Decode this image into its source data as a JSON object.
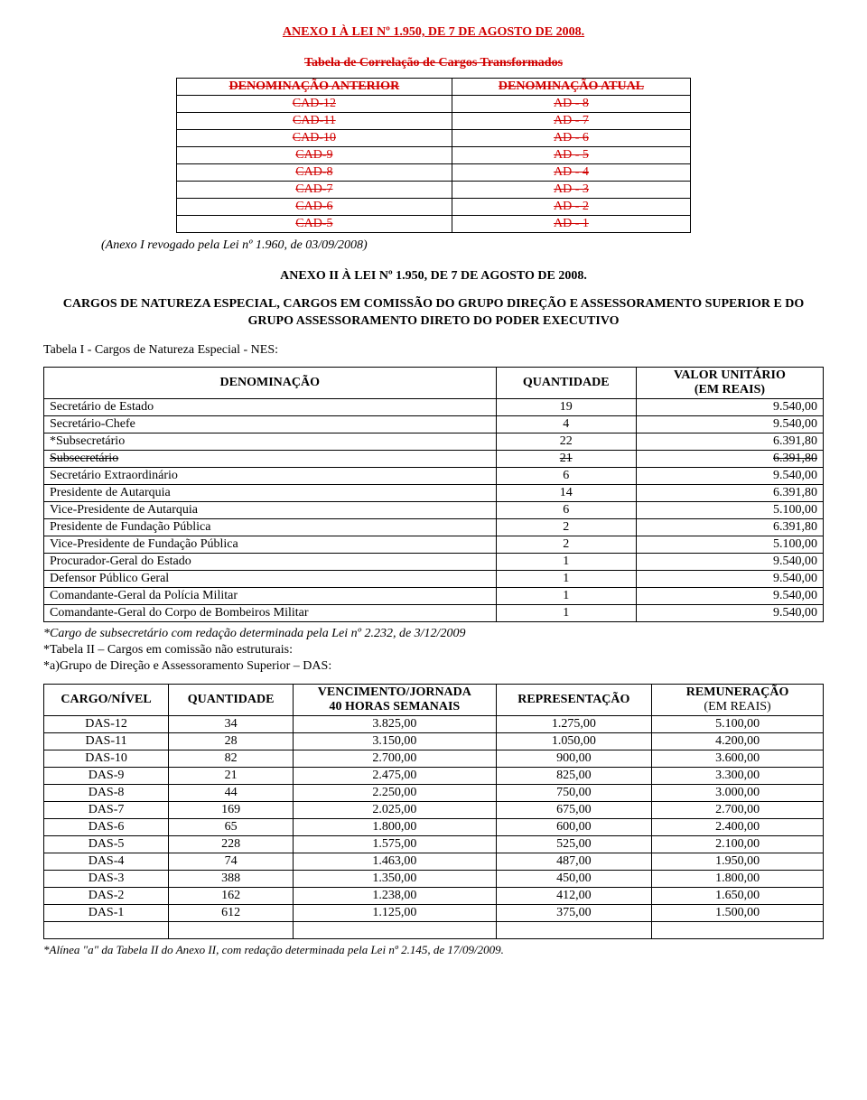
{
  "title1": "ANEXO I À LEI Nº 1.950, DE 7 DE AGOSTO DE 2008.",
  "title2": "Tabela de Correlação de Cargos Transformados",
  "table1": {
    "head1": "DENOMINAÇÃO ANTERIOR",
    "head2": "DENOMINAÇÃO ATUAL",
    "rows": [
      {
        "a": "CAD-12",
        "b": "AD - 8"
      },
      {
        "a": "CAD-11",
        "b": "AD - 7"
      },
      {
        "a": "CAD-10",
        "b": "AD - 6"
      },
      {
        "a": "CAD-9",
        "b": "AD - 5"
      },
      {
        "a": "CAD-8",
        "b": "AD - 4"
      },
      {
        "a": "CAD-7",
        "b": "AD - 3"
      },
      {
        "a": "CAD-6",
        "b": "AD - 2"
      },
      {
        "a": "CAD-5",
        "b": "AD - 1"
      }
    ]
  },
  "revoked_note": "(Anexo I revogado pela Lei nº 1.960, de 03/09/2008)",
  "anexo2_title": "ANEXO II À LEI Nº 1.950, DE 7 DE AGOSTO DE 2008.",
  "para": "CARGOS DE NATUREZA ESPECIAL, CARGOS EM COMISSÃO DO GRUPO DIREÇÃO E ASSESSORAMENTO SUPERIOR E DO GRUPO ASSESSORAMENTO DIRETO DO PODER EXECUTIVO",
  "subpara": "Tabela I - Cargos de Natureza Especial - NES:",
  "nes": {
    "h1": "DENOMINAÇÃO",
    "h2": "QUANTIDADE",
    "h3a": "VALOR UNITÁRIO",
    "h3b": "(EM REAIS)",
    "rows": [
      {
        "d": "Secretário de Estado",
        "q": "19",
        "v": "9.540,00",
        "strike": false
      },
      {
        "d": "Secretário-Chefe",
        "q": "4",
        "v": "9.540,00",
        "strike": false
      },
      {
        "d": "*Subsecretário",
        "q": "22",
        "v": "6.391,80",
        "strike": false
      },
      {
        "d": "Subsecretário",
        "q": "21",
        "v": "6.391,80",
        "strike": true
      },
      {
        "d": "Secretário Extraordinário",
        "q": "6",
        "v": "9.540,00",
        "strike": false
      },
      {
        "d": "Presidente de Autarquia",
        "q": "14",
        "v": "6.391,80",
        "strike": false
      },
      {
        "d": "Vice-Presidente de Autarquia",
        "q": "6",
        "v": "5.100,00",
        "strike": false
      },
      {
        "d": "Presidente de Fundação Pública",
        "q": "2",
        "v": "6.391,80",
        "strike": false
      },
      {
        "d": "Vice-Presidente de Fundação Pública",
        "q": "2",
        "v": "5.100,00",
        "strike": false
      },
      {
        "d": "Procurador-Geral do Estado",
        "q": "1",
        "v": "9.540,00",
        "strike": false
      },
      {
        "d": "Defensor Público Geral",
        "q": "1",
        "v": "9.540,00",
        "strike": false
      },
      {
        "d": "Comandante-Geral da Polícia Militar",
        "q": "1",
        "v": "9.540,00",
        "strike": false
      },
      {
        "d": "Comandante-Geral do Corpo de Bombeiros Militar",
        "q": "1",
        "v": "9.540,00",
        "strike": false
      }
    ]
  },
  "notes": {
    "n1": "*Cargo de subsecretário com redação determinada pela Lei nº 2.232, de 3/12/2009",
    "n2": "*Tabela II – Cargos em comissão não estruturais:",
    "n3": "*a)Grupo de Direção e Assessoramento Superior – DAS:"
  },
  "das": {
    "h1": "CARGO/NÍVEL",
    "h2": "QUANTIDADE",
    "h3a": "VENCIMENTO/JORNADA",
    "h3b": "40 HORAS SEMANAIS",
    "h4": "REPRESENTAÇÃO",
    "h5a": "REMUNERAÇÃO",
    "h5b": "(EM REAIS)",
    "rows": [
      {
        "c": "DAS-12",
        "q": "34",
        "v": "3.825,00",
        "r": "1.275,00",
        "t": "5.100,00"
      },
      {
        "c": "DAS-11",
        "q": "28",
        "v": "3.150,00",
        "r": "1.050,00",
        "t": "4.200,00"
      },
      {
        "c": "DAS-10",
        "q": "82",
        "v": "2.700,00",
        "r": "900,00",
        "t": "3.600,00"
      },
      {
        "c": "DAS-9",
        "q": "21",
        "v": "2.475,00",
        "r": "825,00",
        "t": "3.300,00"
      },
      {
        "c": "DAS-8",
        "q": "44",
        "v": "2.250,00",
        "r": "750,00",
        "t": "3.000,00"
      },
      {
        "c": "DAS-7",
        "q": "169",
        "v": "2.025,00",
        "r": "675,00",
        "t": "2.700,00"
      },
      {
        "c": "DAS-6",
        "q": "65",
        "v": "1.800,00",
        "r": "600,00",
        "t": "2.400,00"
      },
      {
        "c": "DAS-5",
        "q": "228",
        "v": "1.575,00",
        "r": "525,00",
        "t": "2.100,00"
      },
      {
        "c": "DAS-4",
        "q": "74",
        "v": "1.463,00",
        "r": "487,00",
        "t": "1.950,00"
      },
      {
        "c": "DAS-3",
        "q": "388",
        "v": "1.350,00",
        "r": "450,00",
        "t": "1.800,00"
      },
      {
        "c": "DAS-2",
        "q": "162",
        "v": "1.238,00",
        "r": "412,00",
        "t": "1.650,00"
      },
      {
        "c": "DAS-1",
        "q": "612",
        "v": "1.125,00",
        "r": "375,00",
        "t": "1.500,00"
      }
    ]
  },
  "footnote": "*Alínea \"a\" da Tabela II do Anexo II, com redação determinada pela Lei nº 2.145, de 17/09/2009."
}
